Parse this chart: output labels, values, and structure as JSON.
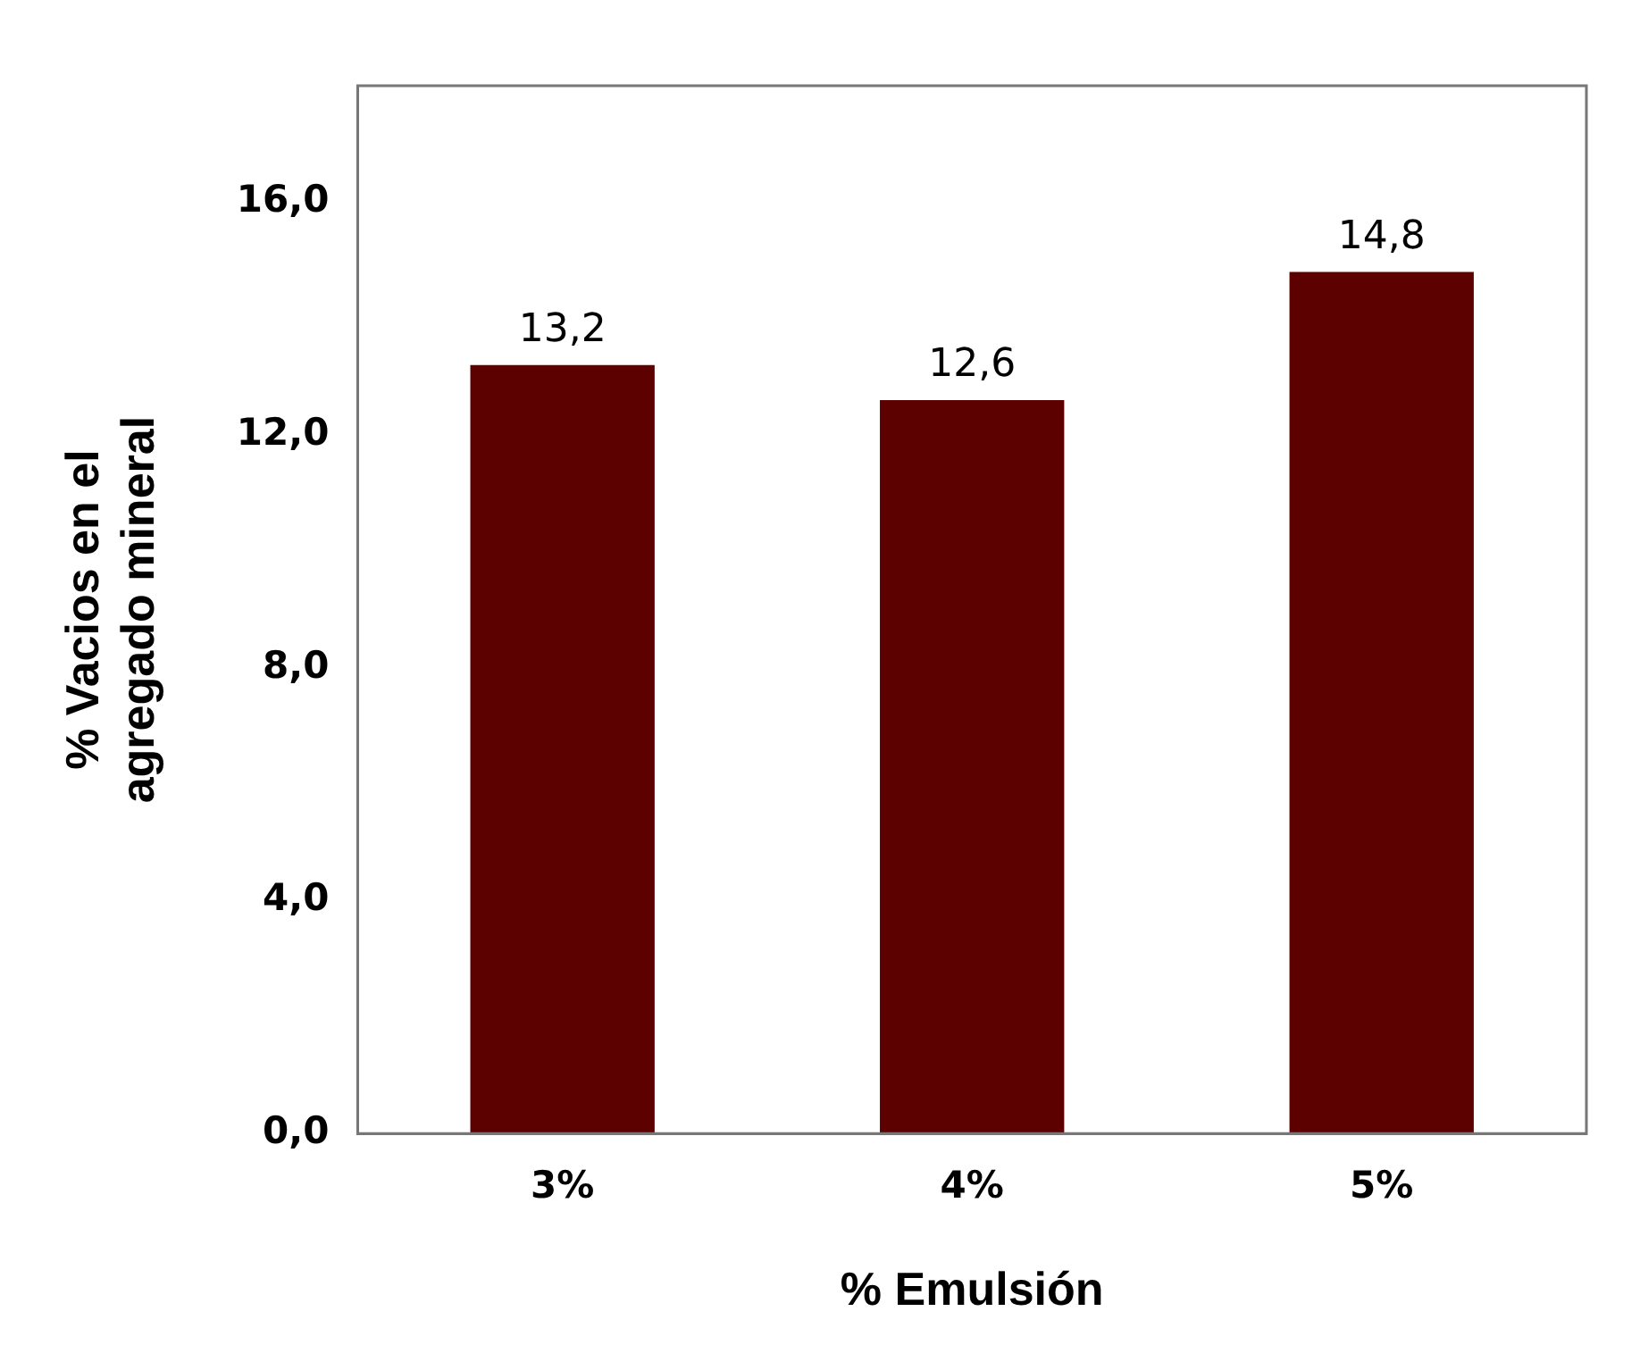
{
  "chart_data": {
    "type": "bar",
    "xlabel": "% Emulsión",
    "ylabel": "% Vacios en el agregado mineral",
    "categories": [
      "3%",
      "4%",
      "5%"
    ],
    "values": [
      13.2,
      12.6,
      14.8
    ],
    "value_labels": [
      "13,2",
      "12,6",
      "14,8"
    ],
    "color": "#5c0000",
    "ylim": [
      0,
      18
    ],
    "yticks": [
      {
        "value": 0,
        "label": "0,0"
      },
      {
        "value": 4,
        "label": "4,0"
      },
      {
        "value": 8,
        "label": "8,0"
      },
      {
        "value": 12,
        "label": "12,0"
      },
      {
        "value": 16,
        "label": "16,0"
      }
    ],
    "grid": false,
    "legend": false
  }
}
